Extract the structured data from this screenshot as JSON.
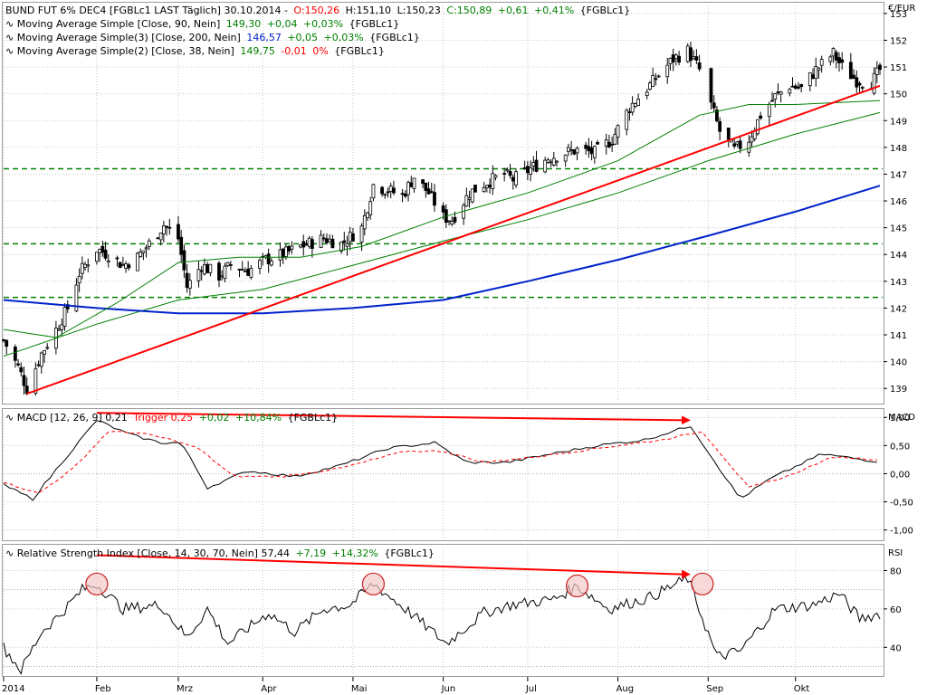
{
  "price_panel": {
    "unit": "€/EUR",
    "header": {
      "name": "BUND FUT 6% DEC4 [FGBLc1 LAST Täglich] 30.10.2014 -",
      "open": "O:150,26",
      "high": "H:151,10",
      "low": "L:150,23",
      "close": "C:150,89",
      "change": "+0,61",
      "change_pct": "+0,41%",
      "ticker": "{FGBLc1}"
    },
    "indicators": [
      {
        "label": "Moving Average Simple [Close, 90, Nein]",
        "value": "149,30",
        "change": "+0,04",
        "pct": "+0,03%",
        "ticker": "{FGBLc1}",
        "color": "#008000"
      },
      {
        "label": "Moving Average Simple(3) [Close, 200, Nein]",
        "value": "146,57",
        "change": "+0,05",
        "pct": "+0,03%",
        "ticker": "{FGBLc1}",
        "color": "#0022cc"
      },
      {
        "label": "Moving Average Simple(2) [Close, 38, Nein]",
        "value": "149,75",
        "change": "-0,01",
        "pct": "0%",
        "ticker": "{FGBLc1}",
        "color": "#008000"
      }
    ],
    "y_ticks": [
      "153",
      "152",
      "151",
      "150",
      "149",
      "148",
      "147",
      "146",
      "145",
      "144",
      "143",
      "142",
      "141",
      "140",
      "139"
    ]
  },
  "macd_panel": {
    "unit": "MACD",
    "label": "MACD [12, 26, 9] 0,21",
    "trigger": "Trigger 0,25",
    "trigger_change": "+0,02",
    "trigger_pct": "+10,84%",
    "ticker": "{FGBLc1}",
    "y_ticks": [
      "1,00",
      "0,50",
      "0,00",
      "-0,50",
      "-1,00"
    ]
  },
  "rsi_panel": {
    "unit": "RSI",
    "label": "Relative Strength Index [Close, 14, 30, 70, Nein] 57,44",
    "change": "+7,19",
    "pct": "+14,32%",
    "ticker": "{FGBLc1}",
    "y_ticks": [
      "80",
      "60",
      "40"
    ]
  },
  "x_axis": {
    "labels": [
      "2014",
      "Feb",
      "Mrz",
      "Apr",
      "Mai",
      "Jun",
      "Jul",
      "Aug",
      "Sep",
      "Okt"
    ]
  },
  "chart_data": [
    {
      "type": "candlestick",
      "panel": "price",
      "ylim": [
        138.5,
        153.3
      ],
      "x_start": "2014-01-02",
      "x_end": "2014-10-30",
      "close_path": [
        [
          "2014-01-02",
          140.8
        ],
        [
          "2014-01-07",
          139.8
        ],
        [
          "2014-01-10",
          139.0
        ],
        [
          "2014-01-15",
          140.3
        ],
        [
          "2014-01-20",
          141.2
        ],
        [
          "2014-01-24",
          142.0
        ],
        [
          "2014-01-28",
          143.3
        ],
        [
          "2014-02-03",
          144.2
        ],
        [
          "2014-02-07",
          144.0
        ],
        [
          "2014-02-12",
          143.6
        ],
        [
          "2014-02-17",
          143.9
        ],
        [
          "2014-02-21",
          144.4
        ],
        [
          "2014-02-26",
          145.1
        ],
        [
          "2014-03-03",
          144.6
        ],
        [
          "2014-03-06",
          142.8
        ],
        [
          "2014-03-11",
          143.6
        ],
        [
          "2014-03-17",
          143.2
        ],
        [
          "2014-03-21",
          143.6
        ],
        [
          "2014-03-27",
          143.4
        ],
        [
          "2014-04-02",
          143.8
        ],
        [
          "2014-04-08",
          144.0
        ],
        [
          "2014-04-14",
          144.3
        ],
        [
          "2014-04-22",
          144.6
        ],
        [
          "2014-04-28",
          144.4
        ],
        [
          "2014-05-05",
          145.0
        ],
        [
          "2014-05-09",
          146.6
        ],
        [
          "2014-05-14",
          146.4
        ],
        [
          "2014-05-19",
          146.2
        ],
        [
          "2014-05-23",
          146.9
        ],
        [
          "2014-05-28",
          146.3
        ],
        [
          "2014-06-02",
          145.4
        ],
        [
          "2014-06-05",
          145.3
        ],
        [
          "2014-06-11",
          146.3
        ],
        [
          "2014-06-17",
          146.7
        ],
        [
          "2014-06-23",
          147.0
        ],
        [
          "2014-06-26",
          146.8
        ],
        [
          "2014-07-02",
          147.2
        ],
        [
          "2014-07-08",
          147.6
        ],
        [
          "2014-07-14",
          147.8
        ],
        [
          "2014-07-18",
          147.9
        ],
        [
          "2014-07-24",
          147.8
        ],
        [
          "2014-07-30",
          148.3
        ],
        [
          "2014-08-05",
          149.5
        ],
        [
          "2014-08-11",
          150.2
        ],
        [
          "2014-08-15",
          150.7
        ],
        [
          "2014-08-20",
          151.3
        ],
        [
          "2014-08-25",
          151.6
        ],
        [
          "2014-08-29",
          150.9
        ],
        [
          "2014-09-05",
          148.6
        ],
        [
          "2014-09-10",
          147.9
        ],
        [
          "2014-09-15",
          148.3
        ],
        [
          "2014-09-19",
          149.2
        ],
        [
          "2014-09-24",
          149.9
        ],
        [
          "2014-09-29",
          150.3
        ],
        [
          "2014-10-03",
          150.2
        ],
        [
          "2014-10-08",
          150.9
        ],
        [
          "2014-10-14",
          151.5
        ],
        [
          "2014-10-17",
          151.0
        ],
        [
          "2014-10-22",
          150.5
        ],
        [
          "2014-10-27",
          150.4
        ],
        [
          "2014-10-30",
          150.89
        ]
      ],
      "series": [
        {
          "name": "Moving Average Simple [Close, 90, Nein]",
          "color": "#008000",
          "points": [
            [
              "2014-01-02",
              140.2
            ],
            [
              "2014-02-03",
              141.4
            ],
            [
              "2014-03-03",
              142.3
            ],
            [
              "2014-04-01",
              142.7
            ],
            [
              "2014-05-02",
              143.6
            ],
            [
              "2014-06-02",
              144.5
            ],
            [
              "2014-07-01",
              145.3
            ],
            [
              "2014-08-01",
              146.3
            ],
            [
              "2014-09-01",
              147.5
            ],
            [
              "2014-10-01",
              148.5
            ],
            [
              "2014-10-30",
              149.3
            ]
          ]
        },
        {
          "name": "Moving Average Simple(3) [Close, 200, Nein]",
          "color": "#0022cc",
          "points": [
            [
              "2014-01-02",
              142.3
            ],
            [
              "2014-02-03",
              142.0
            ],
            [
              "2014-03-03",
              141.8
            ],
            [
              "2014-04-01",
              141.8
            ],
            [
              "2014-05-02",
              142.0
            ],
            [
              "2014-06-02",
              142.3
            ],
            [
              "2014-07-01",
              143.0
            ],
            [
              "2014-08-01",
              143.8
            ],
            [
              "2014-09-01",
              144.7
            ],
            [
              "2014-10-01",
              145.6
            ],
            [
              "2014-10-30",
              146.57
            ]
          ]
        },
        {
          "name": "Moving Average Simple(2) [Close, 38, Nein]",
          "color": "#008000",
          "points": [
            [
              "2014-01-02",
              141.2
            ],
            [
              "2014-01-20",
              140.9
            ],
            [
              "2014-02-10",
              142.2
            ],
            [
              "2014-03-03",
              143.7
            ],
            [
              "2014-03-24",
              143.9
            ],
            [
              "2014-04-14",
              143.9
            ],
            [
              "2014-05-05",
              144.3
            ],
            [
              "2014-06-02",
              145.4
            ],
            [
              "2014-07-01",
              146.3
            ],
            [
              "2014-08-01",
              147.5
            ],
            [
              "2014-08-29",
              149.2
            ],
            [
              "2014-09-15",
              149.6
            ],
            [
              "2014-10-01",
              149.6
            ],
            [
              "2014-10-30",
              149.75
            ]
          ]
        }
      ],
      "annotations": [
        {
          "type": "trendline",
          "color": "#ff0000",
          "from": [
            "2014-01-10",
            138.8
          ],
          "to": [
            "2014-10-30",
            150.3
          ]
        },
        {
          "type": "hline",
          "color": "#008000",
          "dashed": true,
          "y": 147.2
        },
        {
          "type": "hline",
          "color": "#008000",
          "dashed": true,
          "y": 144.4
        },
        {
          "type": "hline",
          "color": "#008000",
          "dashed": true,
          "y": 142.4
        }
      ]
    },
    {
      "type": "line",
      "panel": "macd",
      "ylim": [
        -1.15,
        1.1
      ],
      "series": [
        {
          "name": "MACD [12, 26, 9]",
          "color": "#000000",
          "points": [
            [
              "2014-01-02",
              -0.2
            ],
            [
              "2014-01-12",
              -0.45
            ],
            [
              "2014-01-22",
              0.2
            ],
            [
              "2014-02-03",
              0.95
            ],
            [
              "2014-02-14",
              0.7
            ],
            [
              "2014-02-25",
              0.55
            ],
            [
              "2014-03-04",
              0.55
            ],
            [
              "2014-03-13",
              -0.25
            ],
            [
              "2014-03-27",
              0.05
            ],
            [
              "2014-04-12",
              -0.05
            ],
            [
              "2014-04-28",
              0.15
            ],
            [
              "2014-05-14",
              0.45
            ],
            [
              "2014-05-30",
              0.55
            ],
            [
              "2014-06-10",
              0.2
            ],
            [
              "2014-06-24",
              0.2
            ],
            [
              "2014-07-09",
              0.35
            ],
            [
              "2014-07-25",
              0.5
            ],
            [
              "2014-08-10",
              0.6
            ],
            [
              "2014-08-26",
              0.85
            ],
            [
              "2014-09-12",
              -0.45
            ],
            [
              "2014-09-22",
              -0.1
            ],
            [
              "2014-10-10",
              0.35
            ],
            [
              "2014-10-30",
              0.21
            ]
          ]
        },
        {
          "name": "Trigger",
          "color": "#ff0000",
          "dashed": true,
          "points": [
            [
              "2014-01-02",
              -0.15
            ],
            [
              "2014-01-14",
              -0.35
            ],
            [
              "2014-01-26",
              0.1
            ],
            [
              "2014-02-07",
              0.75
            ],
            [
              "2014-02-18",
              0.72
            ],
            [
              "2014-03-01",
              0.6
            ],
            [
              "2014-03-10",
              0.45
            ],
            [
              "2014-03-22",
              -0.05
            ],
            [
              "2014-04-08",
              -0.05
            ],
            [
              "2014-04-28",
              0.1
            ],
            [
              "2014-05-20",
              0.4
            ],
            [
              "2014-06-02",
              0.4
            ],
            [
              "2014-06-16",
              0.2
            ],
            [
              "2014-07-04",
              0.3
            ],
            [
              "2014-07-25",
              0.45
            ],
            [
              "2014-08-16",
              0.6
            ],
            [
              "2014-08-30",
              0.75
            ],
            [
              "2014-09-15",
              -0.25
            ],
            [
              "2014-09-28",
              -0.05
            ],
            [
              "2014-10-14",
              0.3
            ],
            [
              "2014-10-30",
              0.25
            ]
          ]
        }
      ],
      "annotations": [
        {
          "type": "arrow",
          "color": "#ff0000",
          "from": [
            "2014-02-03",
            1.08
          ],
          "to": [
            "2014-08-26",
            0.95
          ]
        }
      ]
    },
    {
      "type": "line",
      "panel": "rsi",
      "ylim": [
        26,
        92
      ],
      "series": [
        {
          "name": "Relative Strength Index [Close, 14, 30, 70, Nein]",
          "color": "#000000",
          "points": [
            [
              "2014-01-02",
              40
            ],
            [
              "2014-01-08",
              28
            ],
            [
              "2014-01-15",
              48
            ],
            [
              "2014-01-22",
              58
            ],
            [
              "2014-01-29",
              70
            ],
            [
              "2014-02-03",
              73
            ],
            [
              "2014-02-12",
              60
            ],
            [
              "2014-02-25",
              62
            ],
            [
              "2014-03-06",
              45
            ],
            [
              "2014-03-13",
              60
            ],
            [
              "2014-03-20",
              42
            ],
            [
              "2014-04-03",
              58
            ],
            [
              "2014-04-12",
              48
            ],
            [
              "2014-04-22",
              60
            ],
            [
              "2014-05-01",
              62
            ],
            [
              "2014-05-09",
              73
            ],
            [
              "2014-05-20",
              60
            ],
            [
              "2014-06-03",
              42
            ],
            [
              "2014-06-16",
              58
            ],
            [
              "2014-06-25",
              62
            ],
            [
              "2014-07-10",
              65
            ],
            [
              "2014-07-18",
              72
            ],
            [
              "2014-07-29",
              60
            ],
            [
              "2014-08-12",
              66
            ],
            [
              "2014-08-25",
              76
            ],
            [
              "2014-09-04",
              35
            ],
            [
              "2014-09-12",
              38
            ],
            [
              "2014-09-24",
              60
            ],
            [
              "2014-10-07",
              62
            ],
            [
              "2014-10-16",
              68
            ],
            [
              "2014-10-23",
              55
            ],
            [
              "2014-10-30",
              57.44
            ]
          ]
        }
      ],
      "annotations": [
        {
          "type": "arrow",
          "color": "#ff0000",
          "from": [
            "2014-02-03",
            88
          ],
          "to": [
            "2014-08-26",
            78
          ]
        },
        {
          "type": "circle",
          "color": "#cc2222",
          "at": [
            "2014-02-03",
            73
          ]
        },
        {
          "type": "circle",
          "color": "#cc2222",
          "at": [
            "2014-05-09",
            73
          ]
        },
        {
          "type": "circle",
          "color": "#cc2222",
          "at": [
            "2014-07-18",
            72
          ]
        },
        {
          "type": "circle",
          "color": "#cc2222",
          "at": [
            "2014-08-30",
            73
          ]
        }
      ]
    }
  ]
}
